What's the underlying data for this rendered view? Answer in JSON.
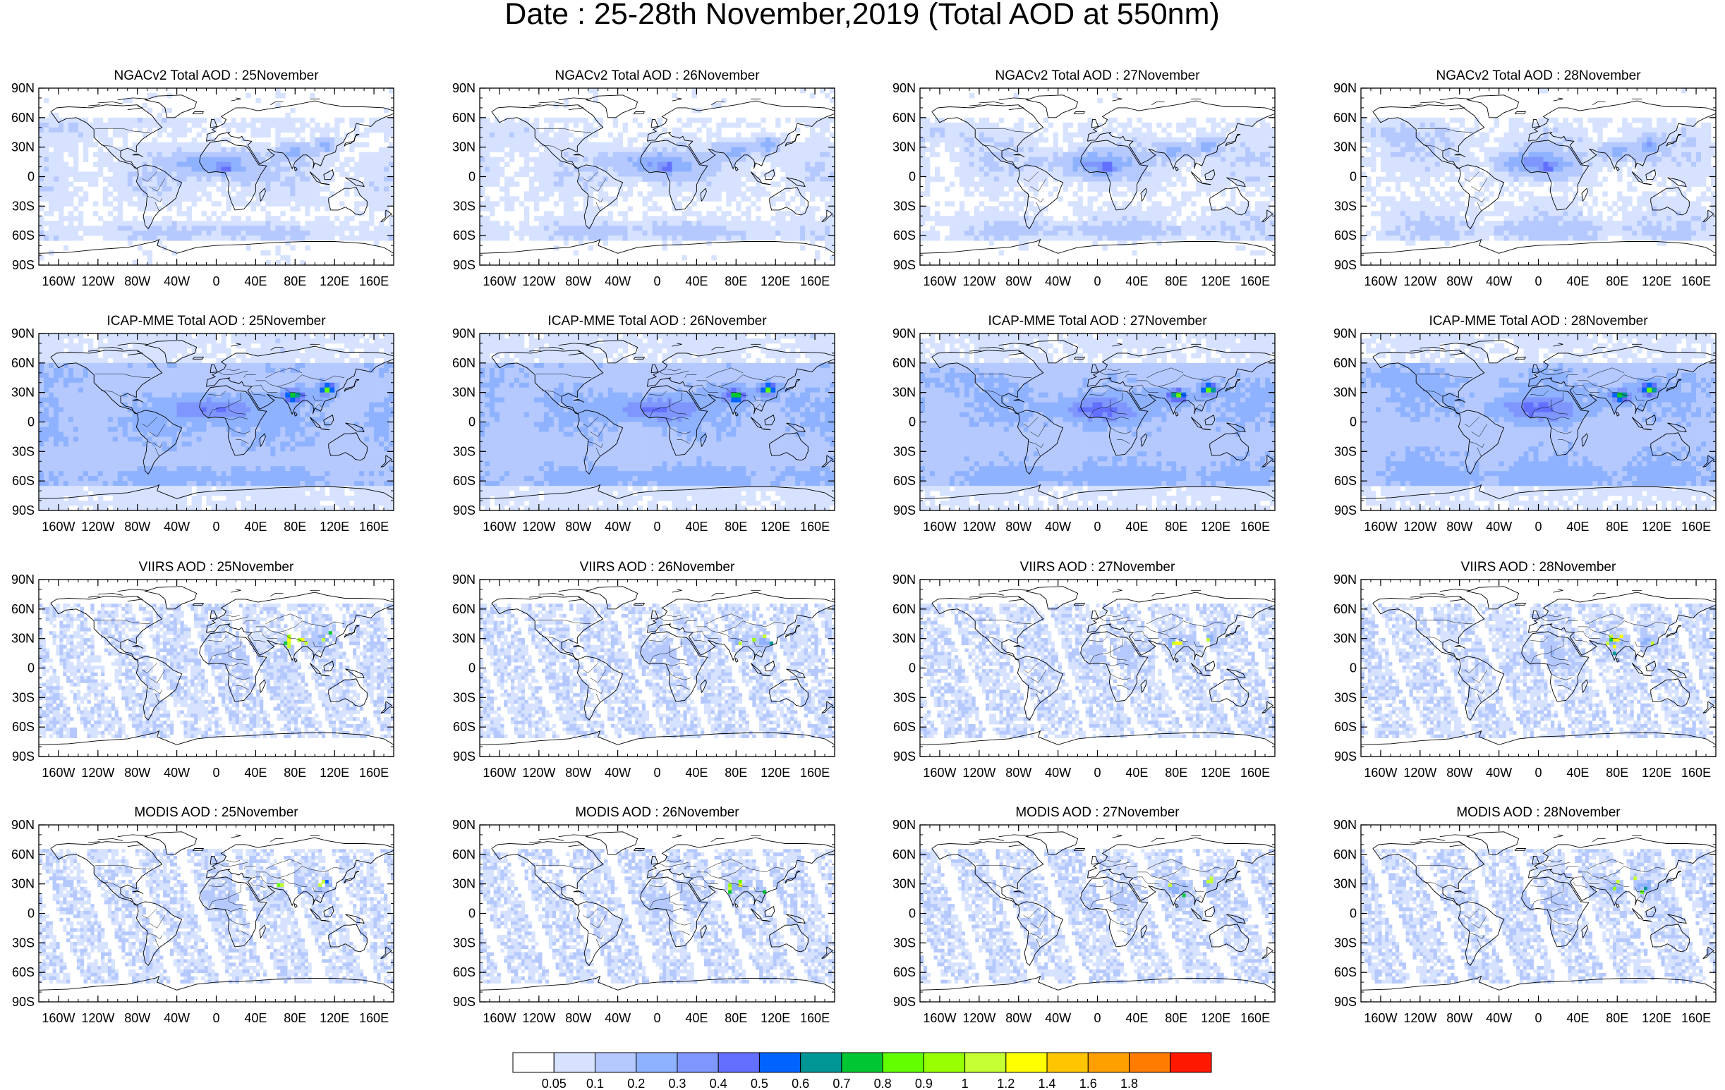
{
  "figure": {
    "title": "Date : 25-28th November,2019 (Total AOD at 550nm)"
  },
  "rows": [
    {
      "product": "NGACv2 Total AOD",
      "panels": [
        "NGACv2 Total AOD : 25November",
        "NGACv2 Total AOD : 26November",
        "NGACv2 Total AOD : 27November",
        "NGACv2 Total AOD : 28November"
      ],
      "field_type": "model",
      "background_level": 1
    },
    {
      "product": "ICAP-MME Total AOD",
      "panels": [
        "ICAP-MME Total AOD : 25November",
        "ICAP-MME Total AOD : 26November",
        "ICAP-MME Total AOD : 27November",
        "ICAP-MME Total AOD : 28November"
      ],
      "field_type": "model",
      "background_level": 2
    },
    {
      "product": "VIIRS AOD",
      "panels": [
        "VIIRS AOD : 25November",
        "VIIRS AOD : 26November",
        "VIIRS AOD : 27November",
        "VIIRS AOD : 28November"
      ],
      "field_type": "swath"
    },
    {
      "product": "MODIS AOD",
      "panels": [
        "MODIS AOD : 25November",
        "MODIS AOD : 26November",
        "MODIS AOD : 27November",
        "MODIS AOD : 28November"
      ],
      "field_type": "swath"
    }
  ],
  "axes": {
    "lat_labels": [
      "90N",
      "60N",
      "30N",
      "0",
      "30S",
      "60S",
      "90S"
    ],
    "lon_labels": [
      "160W",
      "120W",
      "80W",
      "40W",
      "0",
      "40E",
      "80E",
      "120E",
      "160E"
    ],
    "lat_range": [
      -90,
      90
    ],
    "lon_range": [
      -180,
      180
    ],
    "lat_ticks": [
      90,
      60,
      30,
      0,
      -30,
      -60,
      -90
    ],
    "lon_ticks": [
      -160,
      -120,
      -80,
      -40,
      0,
      40,
      80,
      120,
      160
    ]
  },
  "colorbar": {
    "colors": [
      "#ffffff",
      "#d6e2ff",
      "#b5c9ff",
      "#8eb2ff",
      "#7f96ff",
      "#6370ff",
      "#0063ff",
      "#009696",
      "#00c633",
      "#63ff00",
      "#96ff00",
      "#c6ff33",
      "#ffff00",
      "#ffc600",
      "#ffa000",
      "#ff7c00",
      "#ff1900"
    ],
    "labels": [
      "0.05",
      "0.1",
      "0.2",
      "0.3",
      "0.4",
      "0.5",
      "0.6",
      "0.7",
      "0.8",
      "0.9",
      "1",
      "1.2",
      "1.4",
      "1.6",
      "1.8"
    ]
  }
}
